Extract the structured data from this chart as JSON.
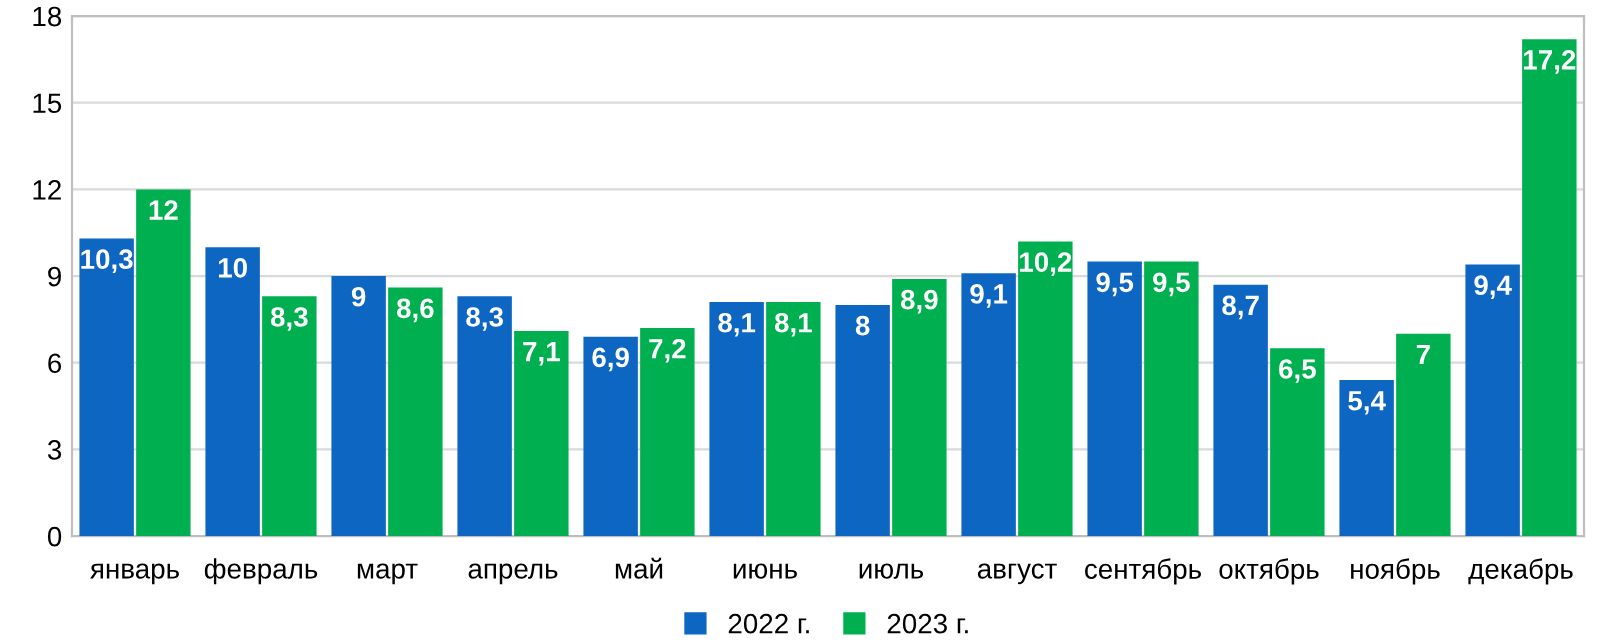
{
  "chart_data": {
    "type": "bar",
    "categories": [
      "январь",
      "февраль",
      "март",
      "апрель",
      "май",
      "июнь",
      "июль",
      "август",
      "сентябрь",
      "октябрь",
      "ноябрь",
      "декабрь"
    ],
    "series": [
      {
        "name": "2022 г.",
        "color": "#0d66c2",
        "values": [
          10.3,
          10,
          9,
          8.3,
          6.9,
          8.1,
          8,
          9.1,
          9.5,
          8.7,
          5.4,
          9.4
        ],
        "value_labels": [
          "10,3",
          "10",
          "9",
          "8,3",
          "6,9",
          "8,1",
          "8",
          "9,1",
          "9,5",
          "8,7",
          "5,4",
          "9,4"
        ]
      },
      {
        "name": "2023 г.",
        "color": "#00b050",
        "values": [
          12,
          8.3,
          8.6,
          7.1,
          7.2,
          8.1,
          8.9,
          10.2,
          9.5,
          6.5,
          7,
          17.2
        ],
        "value_labels": [
          "12",
          "8,3",
          "8,6",
          "7,1",
          "7,2",
          "8,1",
          "8,9",
          "10,2",
          "9,5",
          "6,5",
          "7",
          "17,2"
        ]
      }
    ],
    "ylim": [
      0,
      18
    ],
    "yticks": [
      0,
      3,
      6,
      9,
      12,
      15,
      18
    ],
    "grid": "y",
    "legend": "bottom"
  }
}
